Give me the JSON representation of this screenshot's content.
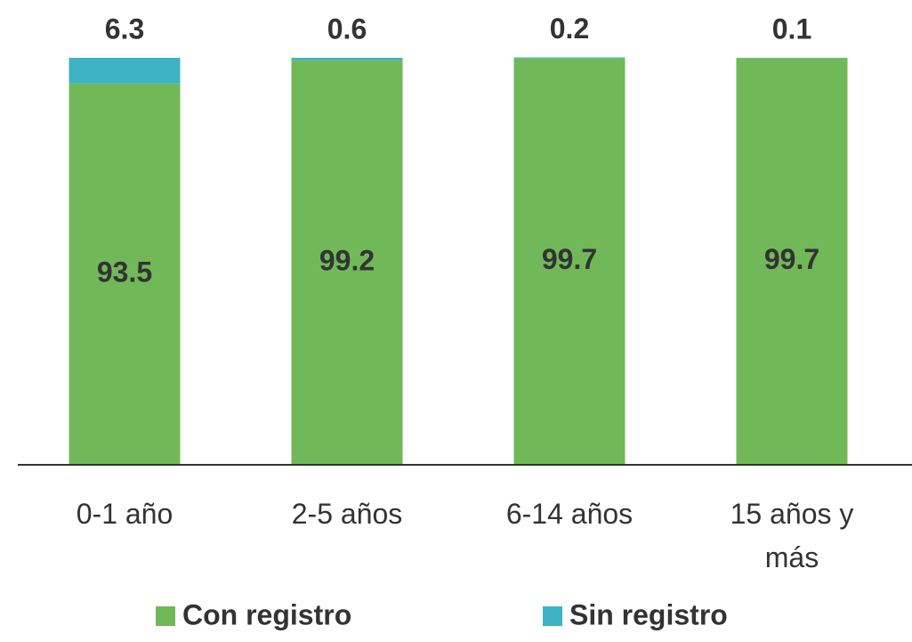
{
  "chart_data": {
    "type": "stacked_bar",
    "categories": [
      "0-1 año",
      "2-5 años",
      "6-14 años",
      "15 años y más"
    ],
    "series": [
      {
        "name": "Con registro",
        "color": "#71b859",
        "values": [
          93.5,
          99.2,
          99.7,
          99.7
        ]
      },
      {
        "name": "Sin registro",
        "color": "#3db3c3",
        "values": [
          6.3,
          0.6,
          0.2,
          0.1
        ]
      }
    ],
    "ylim": [
      0,
      100
    ]
  }
}
